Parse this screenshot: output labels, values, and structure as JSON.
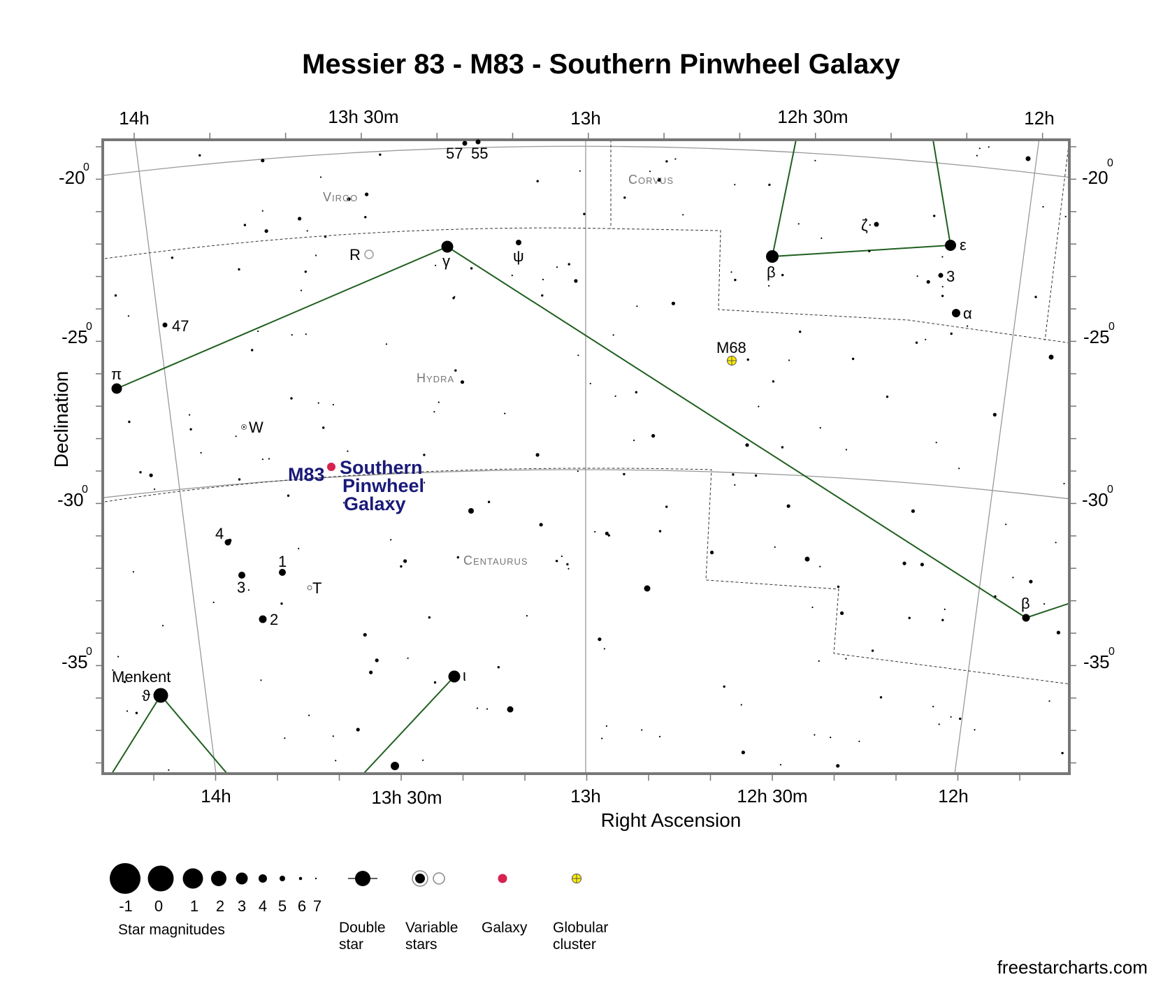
{
  "title": "Messier 83 - M83 - Southern Pinwheel Galaxy",
  "credit": "freestarcharts.com",
  "axes": {
    "xlabel": "Right Ascension",
    "ylabel": "Declination",
    "ra_top": [
      "14h",
      "13h 30m",
      "13h",
      "12h 30m",
      "12h"
    ],
    "ra_bottom": [
      "14h",
      "13h 30m",
      "13h",
      "12h 30m",
      "12h"
    ],
    "dec": [
      {
        "deg": "-20",
        "sup": "0"
      },
      {
        "deg": "-25",
        "sup": "0"
      },
      {
        "deg": "-30",
        "sup": "0"
      },
      {
        "deg": "-35",
        "sup": "0"
      }
    ]
  },
  "constellations": [
    {
      "id": "virgo",
      "name": "Virgo"
    },
    {
      "id": "corvus",
      "name": "Corvus"
    },
    {
      "id": "hydra",
      "name": "Hydra"
    },
    {
      "id": "centaurus",
      "name": "Centaurus"
    }
  ],
  "target": {
    "designation": "M83",
    "name_lines": [
      "Southern",
      "Pinwheel",
      "Galaxy"
    ],
    "color": "#d6224f"
  },
  "cluster": {
    "designation": "M68",
    "color": "#ffee00"
  },
  "star_labels": [
    {
      "id": "57",
      "text": "57"
    },
    {
      "id": "55",
      "text": "55"
    },
    {
      "id": "R",
      "text": "R"
    },
    {
      "id": "gamma-hya",
      "text": "γ"
    },
    {
      "id": "psi-hya",
      "text": "ψ"
    },
    {
      "id": "47",
      "text": "47"
    },
    {
      "id": "pi-hya",
      "text": "π"
    },
    {
      "id": "W",
      "text": "W"
    },
    {
      "id": "4",
      "text": "4"
    },
    {
      "id": "1",
      "text": "1"
    },
    {
      "id": "3-cen",
      "text": "3"
    },
    {
      "id": "T",
      "text": "T"
    },
    {
      "id": "2",
      "text": "2"
    },
    {
      "id": "menkent",
      "text": "Menkent"
    },
    {
      "id": "theta-cen",
      "text": "ϑ"
    },
    {
      "id": "iota-cen",
      "text": "ι"
    },
    {
      "id": "zeta-crv",
      "text": "ζ"
    },
    {
      "id": "epsilon-crv",
      "text": "ε"
    },
    {
      "id": "beta-crv",
      "text": "β"
    },
    {
      "id": "3-crv",
      "text": "3"
    },
    {
      "id": "alpha-crv",
      "text": "α"
    },
    {
      "id": "beta-hya",
      "text": "β"
    }
  ],
  "legend": {
    "magnitudes": [
      "-1",
      "0",
      "1",
      "2",
      "3",
      "4",
      "5",
      "6",
      "7"
    ],
    "magnitudes_caption": "Star magnitudes",
    "double_star": [
      "Double",
      "star"
    ],
    "variable_stars": [
      "Variable",
      "stars"
    ],
    "galaxy": [
      "Galaxy"
    ],
    "globular_cluster": [
      "Globular",
      "cluster"
    ]
  },
  "colors": {
    "constellation_line": "#1f5f1f",
    "grid_line": "#999999",
    "boundary_line": "#333333",
    "frame": "#777777"
  }
}
